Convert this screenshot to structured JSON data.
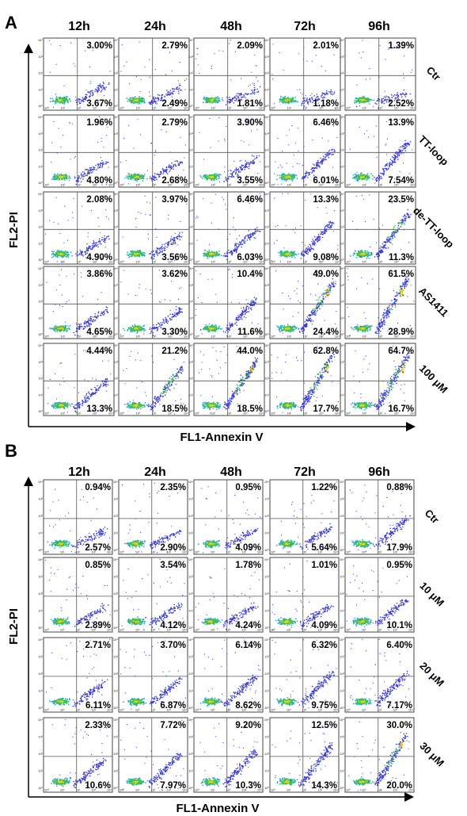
{
  "panels": [
    {
      "letter": "A",
      "columns": [
        "12h",
        "24h",
        "48h",
        "72h",
        "96h"
      ],
      "y_axis_label": "FL2-PI",
      "x_axis_label": "FL1-Annexin V",
      "rows": [
        {
          "label": "Ctr",
          "upper_right": [
            "3.00%",
            "2.79%",
            "2.09%",
            "2.01%",
            "1.39%"
          ],
          "lower_right": [
            "3.67%",
            "2.49%",
            "1.81%",
            "1.18%",
            "2.52%"
          ],
          "density": [
            0.35,
            0.3,
            0.25,
            0.2,
            0.2
          ]
        },
        {
          "label": "TT-loop",
          "upper_right": [
            "1.96%",
            "2.79%",
            "3.90%",
            "6.46%",
            "13.9%"
          ],
          "lower_right": [
            "4.80%",
            "2.68%",
            "3.55%",
            "6.01%",
            "7.54%"
          ],
          "density": [
            0.35,
            0.35,
            0.4,
            0.55,
            0.7
          ]
        },
        {
          "label": "de-TT-loop",
          "upper_right": [
            "2.08%",
            "3.97%",
            "6.46%",
            "13.3%",
            "23.5%"
          ],
          "lower_right": [
            "4.90%",
            "3.56%",
            "6.03%",
            "9.08%",
            "11.3%"
          ],
          "density": [
            0.35,
            0.4,
            0.5,
            0.65,
            0.8
          ]
        },
        {
          "label": "AS1411",
          "upper_right": [
            "3.86%",
            "3.62%",
            "10.4%",
            "49.0%",
            "61.5%"
          ],
          "lower_right": [
            "4.65%",
            "3.30%",
            "11.6%",
            "24.4%",
            "28.9%"
          ],
          "density": [
            0.4,
            0.4,
            0.6,
            0.9,
            1.0
          ]
        },
        {
          "label": "100 μM",
          "upper_right": [
            "4.44%",
            "21.2%",
            "44.0%",
            "62.8%",
            "64.7%"
          ],
          "lower_right": [
            "13.3%",
            "18.5%",
            "18.5%",
            "17.7%",
            "16.7%"
          ],
          "density": [
            0.5,
            0.75,
            0.9,
            1.0,
            1.0
          ]
        }
      ]
    },
    {
      "letter": "B",
      "columns": [
        "12h",
        "24h",
        "48h",
        "72h",
        "96h"
      ],
      "y_axis_label": "FL2-PI",
      "x_axis_label": "FL1-Annexin V",
      "rows": [
        {
          "label": "Ctr",
          "upper_right": [
            "0.94%",
            "2.35%",
            "0.95%",
            "1.22%",
            "0.88%"
          ],
          "lower_right": [
            "2.57%",
            "2.90%",
            "4.09%",
            "5.64%",
            "17.9%"
          ],
          "density": [
            0.3,
            0.3,
            0.3,
            0.35,
            0.5
          ]
        },
        {
          "label": "10 μM",
          "upper_right": [
            "0.85%",
            "3.54%",
            "1.78%",
            "1.01%",
            "0.95%"
          ],
          "lower_right": [
            "2.89%",
            "4.12%",
            "4.24%",
            "4.09%",
            "10.1%"
          ],
          "density": [
            0.3,
            0.35,
            0.35,
            0.35,
            0.45
          ]
        },
        {
          "label": "20 μM",
          "upper_right": [
            "2.71%",
            "3.70%",
            "6.14%",
            "6.32%",
            "6.40%"
          ],
          "lower_right": [
            "6.11%",
            "6.87%",
            "8.62%",
            "9.75%",
            "7.17%"
          ],
          "density": [
            0.4,
            0.45,
            0.5,
            0.55,
            0.55
          ]
        },
        {
          "label": "30 μM",
          "upper_right": [
            "2.33%",
            "7.72%",
            "9.20%",
            "12.5%",
            "30.0%"
          ],
          "lower_right": [
            "10.6%",
            "7.97%",
            "10.3%",
            "14.3%",
            "20.0%"
          ],
          "density": [
            0.45,
            0.55,
            0.6,
            0.7,
            0.9
          ]
        }
      ]
    }
  ],
  "tick_labels": [
    "10⁰",
    "10¹",
    "10²",
    "10³",
    "10⁴"
  ],
  "colors": {
    "sparse": "#3a3ad6",
    "mid": "#2aa8c8",
    "dense": "#3cc24a",
    "hot": "#e8d020",
    "core": "#e05010"
  }
}
